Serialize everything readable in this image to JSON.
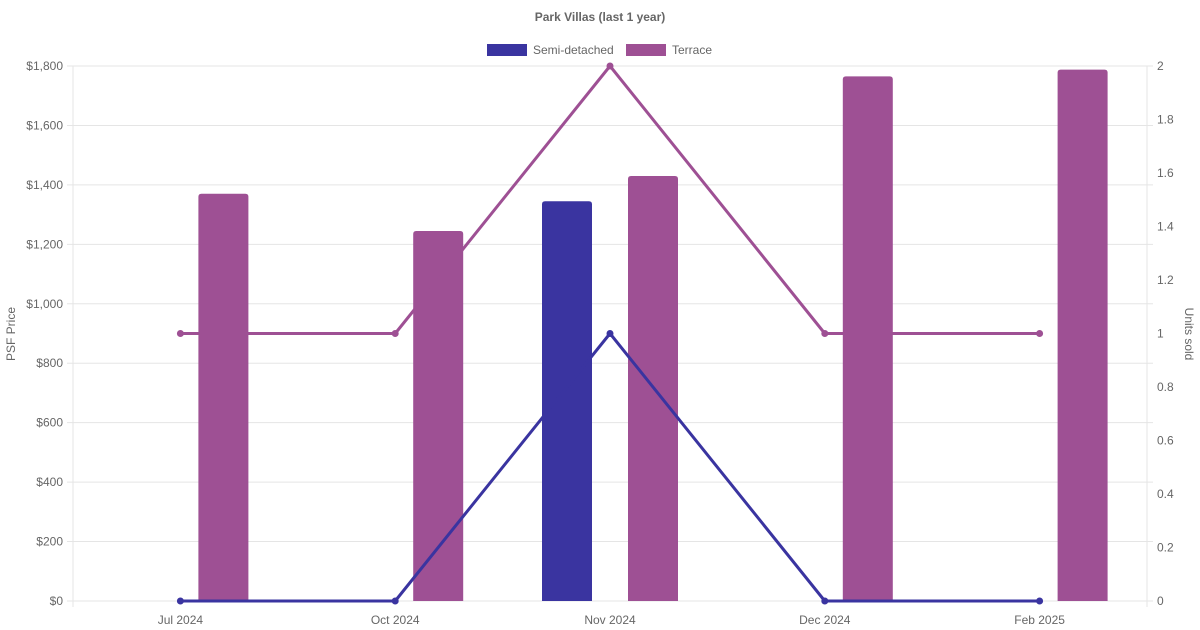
{
  "chart_data": {
    "type": "bar",
    "title": "Park Villas (last 1 year)",
    "categories": [
      "Jul 2024",
      "Oct 2024",
      "Nov 2024",
      "Dec 2024",
      "Feb 2025"
    ],
    "y_left": {
      "label": "PSF Price",
      "ylim": [
        0,
        1800
      ],
      "ticks": [
        "$0",
        "$200",
        "$400",
        "$600",
        "$800",
        "$1,000",
        "$1,200",
        "$1,400",
        "$1,600",
        "$1,800"
      ]
    },
    "y_right": {
      "label": "Units sold",
      "ylim": [
        0,
        2
      ],
      "ticks": [
        "0",
        "0.2",
        "0.4",
        "0.6",
        "0.8",
        "1",
        "1.2",
        "1.4",
        "1.6",
        "1.8",
        "2"
      ]
    },
    "legend": {
      "placement": "top-center",
      "entries": [
        {
          "label": "Semi-detached",
          "color": "#3a34a0"
        },
        {
          "label": "Terrace",
          "color": "#9e5094"
        }
      ]
    },
    "series": [
      {
        "name": "Semi-detached",
        "kind": "bar",
        "axis": "left",
        "color": "#3a34a0",
        "values": [
          null,
          null,
          1345,
          null,
          null
        ]
      },
      {
        "name": "Terrace",
        "kind": "bar",
        "axis": "left",
        "color": "#9e5094",
        "values": [
          1370,
          1245,
          1430,
          1765,
          1788
        ]
      },
      {
        "name": "Semi-detached",
        "kind": "line",
        "axis": "right",
        "color": "#3a34a0",
        "values": [
          0,
          0,
          1,
          0,
          0
        ]
      },
      {
        "name": "Terrace",
        "kind": "line",
        "axis": "right",
        "color": "#9e5094",
        "values": [
          1,
          1,
          2,
          1,
          1
        ]
      }
    ],
    "grid": true
  }
}
